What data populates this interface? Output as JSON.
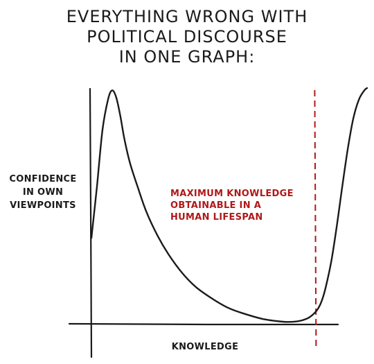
{
  "chart_data": {
    "type": "line",
    "title": [
      "EVERYTHING WRONG WITH",
      "POLITICAL DISCOURSE",
      "IN ONE GRAPH:"
    ],
    "xlabel": "KNOWLEDGE",
    "ylabel": [
      "CONFIDENCE",
      "IN OWN",
      "VIEWPOINTS"
    ],
    "xlim": [
      0,
      100
    ],
    "ylim": [
      0,
      100
    ],
    "grid": false,
    "legend": "none",
    "series": [
      {
        "color": "#1a1a1a",
        "x": [
          0,
          2,
          4,
          6,
          7.5,
          9,
          10.5,
          12,
          14,
          17,
          20,
          24,
          28,
          33,
          38,
          44,
          50,
          56,
          62,
          67,
          71,
          75,
          78,
          80,
          82,
          83.5,
          85,
          87,
          89,
          91,
          93,
          95,
          97,
          99,
          100
        ],
        "y": [
          36,
          58,
          82,
          95,
          99,
          96,
          88,
          78,
          68,
          57,
          47,
          37,
          29,
          21,
          15,
          10,
          6,
          3.5,
          1.5,
          0.6,
          0.2,
          0.5,
          1.5,
          3,
          5.5,
          9,
          15,
          26,
          41,
          58,
          74,
          87,
          95,
          99,
          100
        ]
      }
    ],
    "annotations": [
      {
        "text": [
          "MAXIMUM KNOWLEDGE",
          "OBTAINABLE IN A",
          "HUMAN LIFESPAN"
        ],
        "color": "#b01818",
        "x": 81,
        "style": "dashed-vertical"
      }
    ]
  }
}
